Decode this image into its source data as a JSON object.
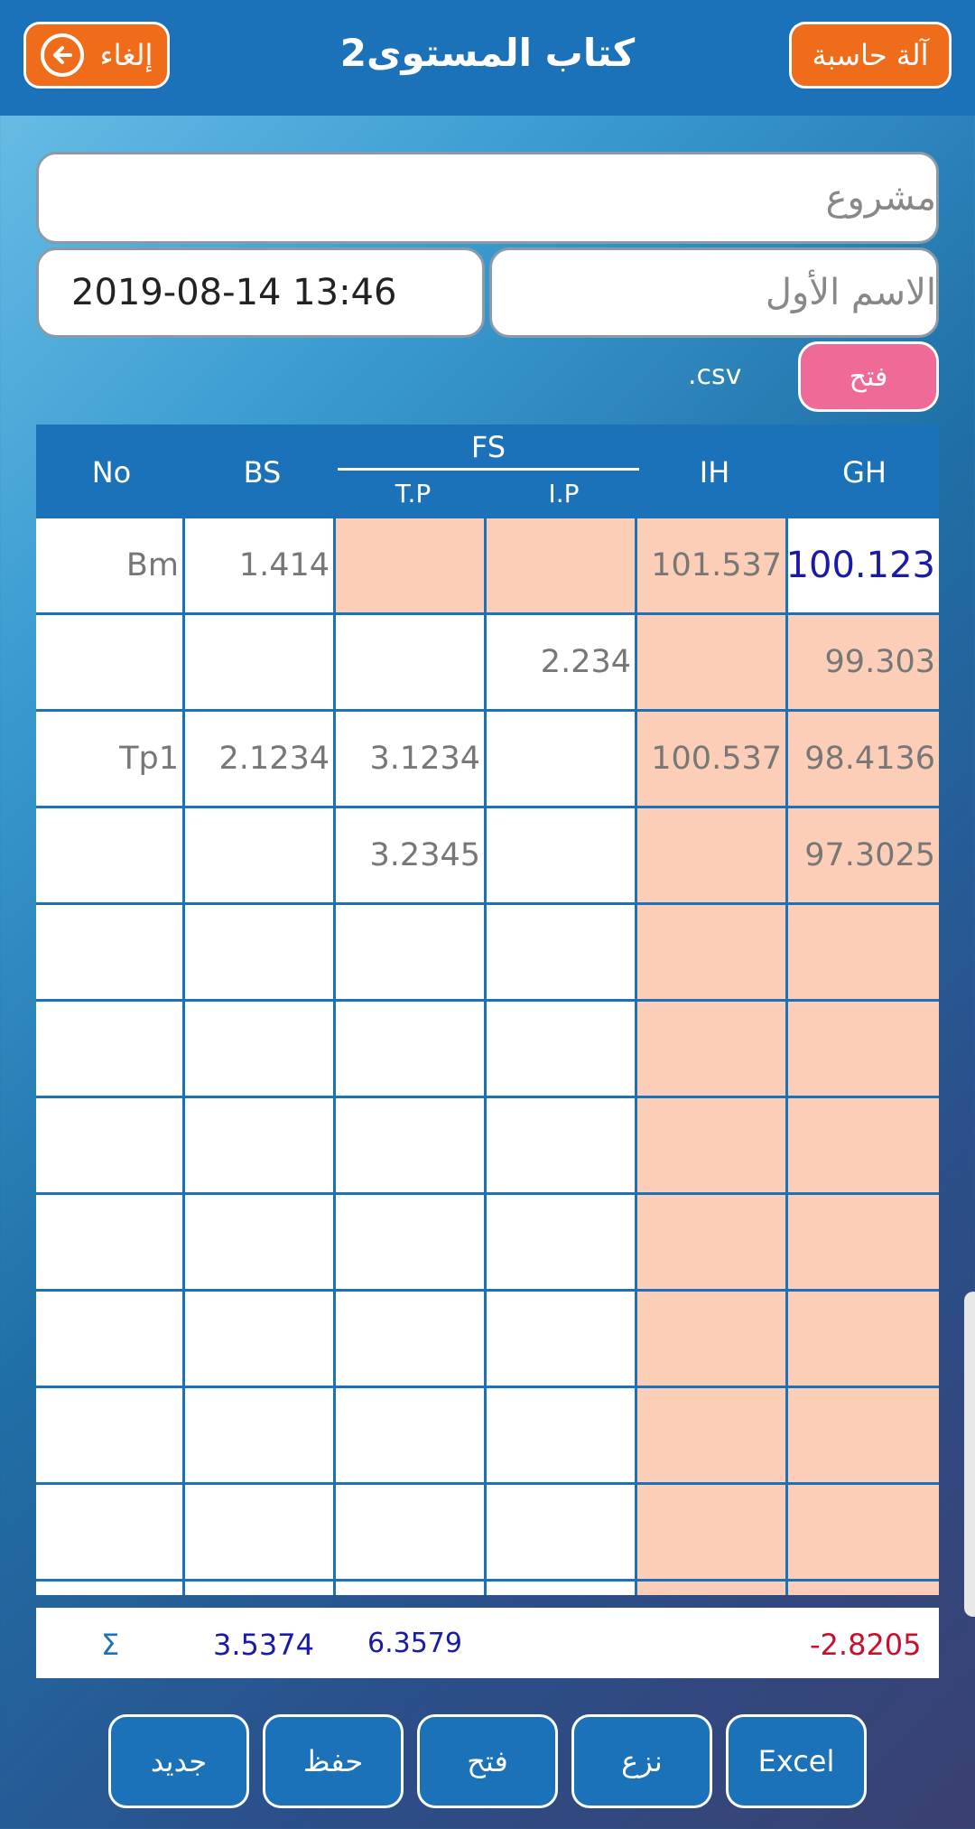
{
  "header": {
    "title": "كتاب المستوى2",
    "cancel_label": "إلغاء",
    "calculator_label": "آلة حاسبة"
  },
  "form": {
    "project_placeholder": "مشروع",
    "first_name_placeholder": "الاسم الأول",
    "datetime_value": "2019-08-14 13:46",
    "csv_label": ".csv",
    "open_label": "فتح"
  },
  "table": {
    "headers": {
      "no": "No",
      "bs": "BS",
      "fs": "FS",
      "tp": "T.P",
      "ip": "I.P",
      "ih": "IH",
      "gh": "GH"
    },
    "rows": [
      {
        "no": "Bm",
        "bs": "1.414",
        "tp": "",
        "ip": "",
        "ih": "101.537",
        "gh": "100.123"
      },
      {
        "no": "",
        "bs": "",
        "tp": "",
        "ip": "2.234",
        "ih": "",
        "gh": "99.303"
      },
      {
        "no": "Tp1",
        "bs": "2.1234",
        "tp": "3.1234",
        "ip": "",
        "ih": "100.537",
        "gh": "98.4136"
      },
      {
        "no": "",
        "bs": "",
        "tp": "3.2345",
        "ip": "",
        "ih": "",
        "gh": "97.3025"
      },
      {
        "no": "",
        "bs": "",
        "tp": "",
        "ip": "",
        "ih": "",
        "gh": ""
      },
      {
        "no": "",
        "bs": "",
        "tp": "",
        "ip": "",
        "ih": "",
        "gh": ""
      },
      {
        "no": "",
        "bs": "",
        "tp": "",
        "ip": "",
        "ih": "",
        "gh": ""
      },
      {
        "no": "",
        "bs": "",
        "tp": "",
        "ip": "",
        "ih": "",
        "gh": ""
      },
      {
        "no": "",
        "bs": "",
        "tp": "",
        "ip": "",
        "ih": "",
        "gh": ""
      },
      {
        "no": "",
        "bs": "",
        "tp": "",
        "ip": "",
        "ih": "",
        "gh": ""
      },
      {
        "no": "",
        "bs": "",
        "tp": "",
        "ip": "",
        "ih": "",
        "gh": ""
      },
      {
        "no": "",
        "bs": "",
        "tp": "",
        "ip": "",
        "ih": "",
        "gh": ""
      }
    ]
  },
  "totals": {
    "sigma": "Σ",
    "bs_sum": "3.5374",
    "tp_sum": "6.3579",
    "diff": "-2.8205"
  },
  "bottom_bar": {
    "new_label": "جديد",
    "save_label": "حفظ",
    "open_label": "فتح",
    "delete_label": "نزع",
    "excel_label": "Excel"
  },
  "colors": {
    "primary": "#1b72b8",
    "accent_orange": "#ef6c1a",
    "accent_pink": "#ef6a96",
    "peach": "#fdceb7",
    "value_blue": "#1a1aa8",
    "value_red": "#c8102e"
  },
  "icons": {
    "cancel": "back-arrow-icon"
  }
}
